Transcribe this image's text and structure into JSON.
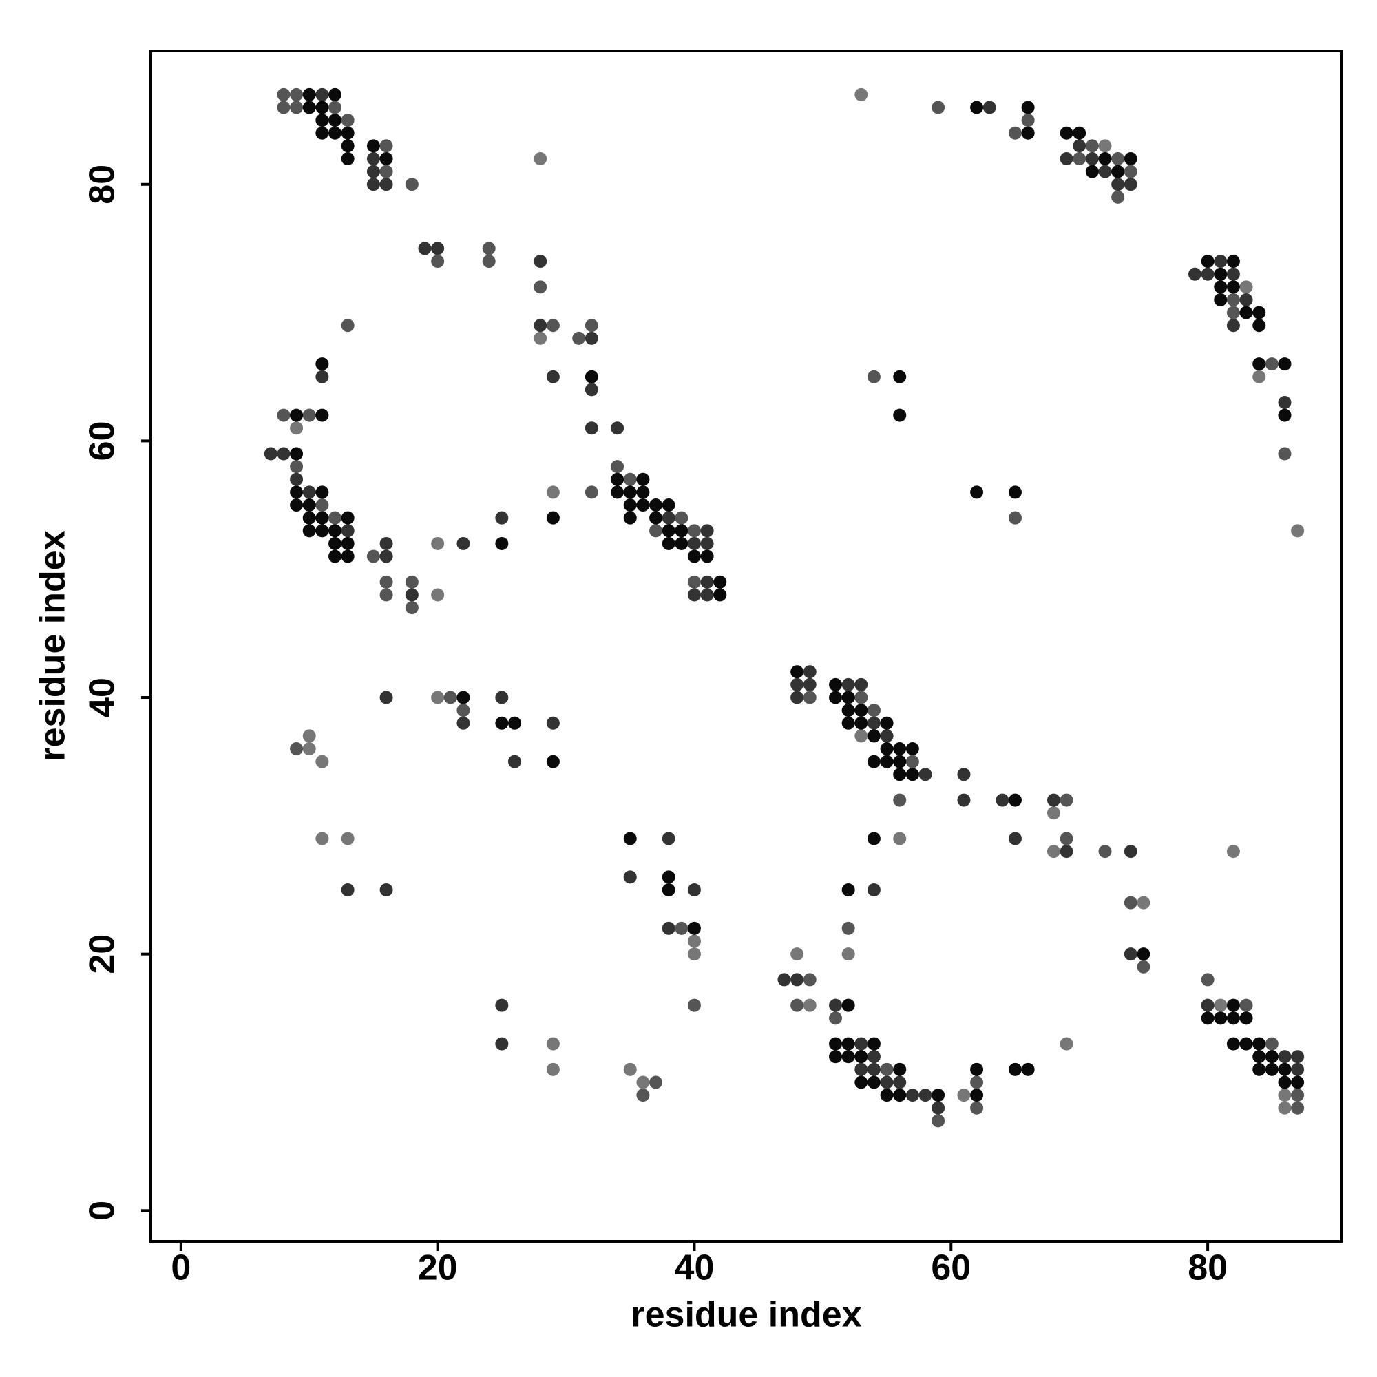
{
  "chart_data": {
    "type": "scatter",
    "xlabel": "residue index",
    "ylabel": "residue index",
    "xlim": [
      -2.35,
      90.4
    ],
    "ylim": [
      -2.4,
      90.4
    ],
    "xticks": [
      0,
      20,
      40,
      60,
      80
    ],
    "yticks": [
      0,
      20,
      40,
      60,
      80
    ],
    "grid": false,
    "series": [
      {
        "color": "#777777",
        "x": [
          28,
          28,
          9,
          29,
          20,
          20,
          20,
          10,
          10,
          11,
          11,
          13,
          29,
          29,
          40,
          40,
          35,
          36,
          53,
          68,
          56,
          68,
          82,
          75,
          52,
          48,
          49,
          81,
          69,
          61,
          86,
          86,
          53,
          72,
          83,
          84,
          87
        ],
        "y": [
          82,
          68,
          61,
          56,
          52,
          48,
          40,
          37,
          36,
          35,
          29,
          29,
          13,
          11,
          21,
          20,
          11,
          10,
          37,
          31,
          29,
          28,
          28,
          24,
          20,
          20,
          16,
          16,
          13,
          9,
          9,
          8,
          87,
          83,
          72,
          65,
          53
        ]
      },
      {
        "color": "#555555",
        "x": [
          8,
          9,
          8,
          9,
          12,
          13,
          16,
          16,
          18,
          24,
          20,
          24,
          28,
          13,
          29,
          32,
          31,
          8,
          10,
          9,
          34,
          35,
          32,
          11,
          12,
          39,
          37,
          40,
          15,
          16,
          18,
          40,
          16,
          18,
          21,
          22,
          9,
          39,
          40,
          37,
          36,
          49,
          53,
          54,
          57,
          56,
          69,
          69,
          72,
          74,
          52,
          75,
          49,
          80,
          48,
          83,
          51,
          85,
          55,
          62,
          87,
          62,
          87,
          59,
          59,
          66,
          65,
          71,
          70,
          73,
          74,
          73,
          82,
          82,
          85,
          86,
          54,
          65
        ],
        "y": [
          87,
          87,
          86,
          86,
          86,
          85,
          83,
          81,
          80,
          75,
          74,
          74,
          72,
          69,
          69,
          69,
          68,
          62,
          62,
          58,
          58,
          57,
          56,
          55,
          54,
          54,
          53,
          53,
          51,
          49,
          49,
          49,
          48,
          47,
          40,
          39,
          36,
          22,
          16,
          10,
          9,
          40,
          40,
          39,
          35,
          32,
          32,
          29,
          28,
          24,
          22,
          19,
          18,
          18,
          16,
          16,
          15,
          13,
          11,
          10,
          9,
          8,
          8,
          7,
          86,
          85,
          84,
          83,
          82,
          82,
          81,
          79,
          71,
          70,
          66,
          59,
          65,
          54
        ]
      },
      {
        "color": "#333333",
        "x": [
          11,
          15,
          15,
          15,
          16,
          19,
          20,
          28,
          28,
          32,
          11,
          29,
          32,
          32,
          34,
          7,
          8,
          9,
          10,
          25,
          38,
          13,
          41,
          16,
          22,
          40,
          41,
          16,
          41,
          18,
          40,
          41,
          16,
          25,
          22,
          29,
          26,
          13,
          16,
          25,
          25,
          38,
          35,
          40,
          38,
          49,
          48,
          49,
          52,
          53,
          48,
          54,
          55,
          58,
          61,
          61,
          64,
          68,
          65,
          69,
          74,
          54,
          74,
          47,
          48,
          51,
          80,
          53,
          54,
          86,
          87,
          53,
          54,
          87,
          55,
          56,
          57,
          58,
          59,
          63,
          70,
          69,
          71,
          72,
          73,
          74,
          79,
          81,
          80,
          82,
          83,
          82,
          86
        ],
        "y": [
          87,
          82,
          81,
          80,
          80,
          75,
          75,
          74,
          69,
          68,
          65,
          65,
          64,
          61,
          61,
          59,
          59,
          57,
          56,
          54,
          54,
          53,
          53,
          52,
          52,
          52,
          52,
          51,
          49,
          48,
          48,
          48,
          40,
          40,
          38,
          38,
          35,
          25,
          25,
          16,
          13,
          29,
          26,
          25,
          22,
          42,
          41,
          41,
          41,
          41,
          40,
          38,
          37,
          34,
          34,
          32,
          32,
          32,
          29,
          28,
          28,
          25,
          20,
          18,
          18,
          16,
          16,
          13,
          12,
          12,
          12,
          11,
          11,
          11,
          10,
          10,
          9,
          9,
          8,
          86,
          83,
          82,
          82,
          81,
          80,
          80,
          73,
          74,
          73,
          73,
          71,
          69,
          63
        ]
      },
      {
        "color": "#0a0a0a",
        "x": [
          10,
          12,
          10,
          11,
          11,
          12,
          11,
          12,
          13,
          13,
          13,
          15,
          16,
          11,
          32,
          9,
          11,
          9,
          34,
          36,
          9,
          11,
          34,
          35,
          36,
          9,
          10,
          35,
          36,
          37,
          38,
          10,
          11,
          13,
          29,
          35,
          37,
          10,
          11,
          12,
          38,
          39,
          12,
          13,
          25,
          38,
          39,
          12,
          13,
          40,
          41,
          42,
          42,
          22,
          25,
          26,
          29,
          35,
          38,
          38,
          40,
          48,
          51,
          51,
          52,
          52,
          53,
          52,
          53,
          55,
          54,
          55,
          56,
          57,
          54,
          55,
          56,
          56,
          57,
          65,
          54,
          52,
          75,
          52,
          82,
          80,
          81,
          82,
          83,
          51,
          52,
          54,
          82,
          83,
          84,
          51,
          52,
          53,
          84,
          85,
          56,
          62,
          65,
          66,
          84,
          85,
          86,
          53,
          54,
          86,
          87,
          55,
          56,
          59,
          62,
          62,
          66,
          66,
          69,
          70,
          72,
          74,
          71,
          73,
          80,
          82,
          81,
          81,
          82,
          81,
          83,
          84,
          84,
          84,
          86,
          86,
          56,
          56,
          62,
          65
        ],
        "y": [
          87,
          87,
          86,
          86,
          85,
          85,
          84,
          84,
          84,
          83,
          82,
          83,
          82,
          66,
          65,
          62,
          62,
          59,
          57,
          57,
          56,
          56,
          56,
          56,
          56,
          55,
          55,
          55,
          55,
          55,
          55,
          54,
          54,
          54,
          54,
          54,
          54,
          53,
          53,
          53,
          53,
          53,
          52,
          52,
          52,
          52,
          52,
          51,
          51,
          51,
          51,
          49,
          48,
          40,
          38,
          38,
          35,
          29,
          26,
          25,
          22,
          42,
          41,
          40,
          40,
          39,
          39,
          38,
          38,
          38,
          37,
          36,
          36,
          36,
          35,
          35,
          35,
          34,
          34,
          32,
          29,
          25,
          20,
          16,
          16,
          15,
          15,
          15,
          15,
          13,
          13,
          13,
          13,
          13,
          13,
          12,
          12,
          12,
          12,
          12,
          11,
          11,
          11,
          11,
          11,
          11,
          11,
          10,
          10,
          10,
          10,
          9,
          9,
          9,
          9,
          86,
          86,
          84,
          84,
          84,
          82,
          82,
          81,
          81,
          74,
          74,
          73,
          72,
          72,
          71,
          70,
          70,
          69,
          66,
          66,
          62,
          65,
          62,
          56,
          56
        ]
      }
    ]
  }
}
